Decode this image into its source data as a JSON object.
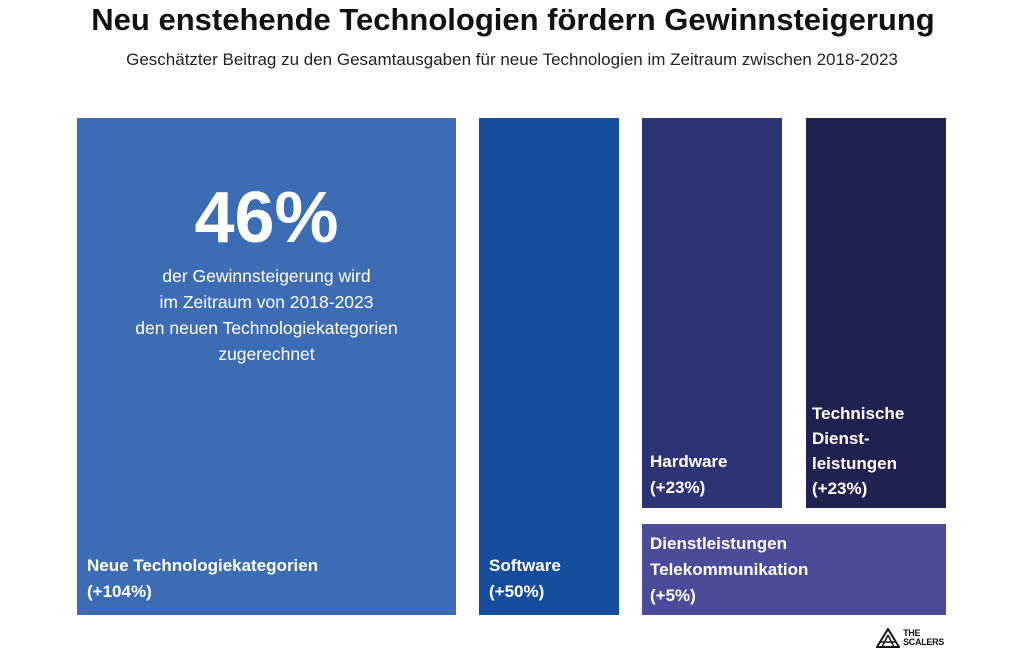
{
  "title": "Neu enstehende Technologien fördern Gewinnsteigerung",
  "subtitle": "Geschätzter Beitrag zu den Gesamtausgaben für neue Technologien im Zeitraum zwischen 2018-2023",
  "highlight": {
    "value": "46%",
    "description_lines": [
      "der Gewinnsteigerung wird",
      "im Zeitraum von 2018-2023",
      "den neuen Technologiekategorien",
      "zugerechnet"
    ]
  },
  "chart_data": {
    "type": "treemap",
    "title": "Neu enstehende Technologien fördern Gewinnsteigerung",
    "subtitle": "Geschätzter Beitrag zu den Gesamtausgaben für neue Technologien im Zeitraum zwischen 2018-2023",
    "unit": "%",
    "items": [
      {
        "id": "neue-technologiekategorien",
        "label_lines": [
          "Neue Technologiekategorien"
        ],
        "value_label": "(+104%)",
        "value": 104,
        "color": "#3c6cb4"
      },
      {
        "id": "software",
        "label_lines": [
          "Software"
        ],
        "value_label": "(+50%)",
        "value": 50,
        "color": "#164c9c"
      },
      {
        "id": "hardware",
        "label_lines": [
          "Hardware"
        ],
        "value_label": "(+23%)",
        "value": 23,
        "color": "#2c3473"
      },
      {
        "id": "technische-dienstleistungen",
        "label_lines": [
          "Technische",
          "Dienst-",
          "leistungen"
        ],
        "value_label": "(+23%)",
        "value": 23,
        "color": "#20214f"
      },
      {
        "id": "dienstleistungen-telekommunikation",
        "label_lines": [
          "Dienstleistungen",
          "Telekommunikation"
        ],
        "value_label": "(+5%)",
        "value": 5,
        "color": "#4a4c9a"
      }
    ]
  },
  "logo": {
    "lines": [
      "THE",
      "SCALERS"
    ],
    "icon": "scalers-logo-icon"
  }
}
